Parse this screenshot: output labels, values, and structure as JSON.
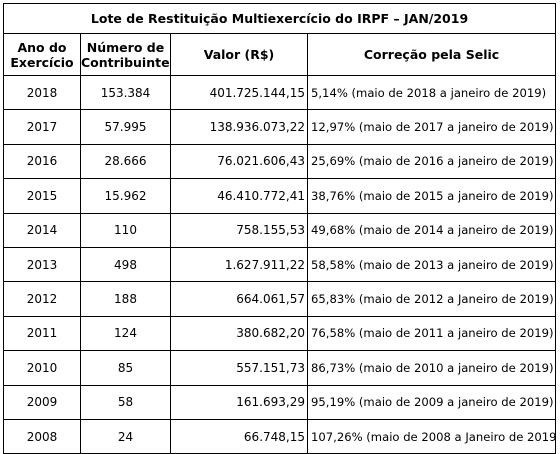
{
  "title": "Lote de Restituição Multiexercício do IRPF – JAN/2019",
  "headers": {
    "year_line1": "Ano do",
    "year_line2": "Exercício",
    "count_line1": "Número de",
    "count_line2": "Contribuintes",
    "value": "Valor (R$)",
    "selic": "Correção pela Selic"
  },
  "rows": [
    {
      "year": "2018",
      "count": "153.384",
      "value": "401.725.144,15",
      "selic": "5,14% (maio de 2018 a janeiro de 2019)"
    },
    {
      "year": "2017",
      "count": "57.995",
      "value": "138.936.073,22",
      "selic": "12,97% (maio de 2017 a janeiro de 2019)"
    },
    {
      "year": "2016",
      "count": "28.666",
      "value": "76.021.606,43",
      "selic": "25,69% (maio de 2016 a janeiro de 2019)"
    },
    {
      "year": "2015",
      "count": "15.962",
      "value": "46.410.772,41",
      "selic": "38,76% (maio de 2015 a janeiro de 2019)"
    },
    {
      "year": "2014",
      "count": "110",
      "value": "758.155,53",
      "selic": "49,68% (maio de 2014 a janeiro de 2019)"
    },
    {
      "year": "2013",
      "count": "498",
      "value": "1.627.911,22",
      "selic": "58,58% (maio de 2013 a janeiro de 2019)"
    },
    {
      "year": "2012",
      "count": "188",
      "value": "664.061,57",
      "selic": "65,83% (maio de 2012 a Janeiro de 2019)"
    },
    {
      "year": "2011",
      "count": "124",
      "value": "380.682,20",
      "selic": "76,58% (maio de 2011 a janeiro de 2019)"
    },
    {
      "year": "2010",
      "count": "85",
      "value": "557.151,73",
      "selic": "86,73% (maio de 2010 a janeiro de 2019)"
    },
    {
      "year": "2009",
      "count": "58",
      "value": "161.693,29",
      "selic": "95,19% (maio de 2009 a janeiro de 2019)"
    },
    {
      "year": "2008",
      "count": "24",
      "value": "66.748,15",
      "selic": "107,26% (maio de 2008 a Janeiro de 2019)"
    }
  ]
}
